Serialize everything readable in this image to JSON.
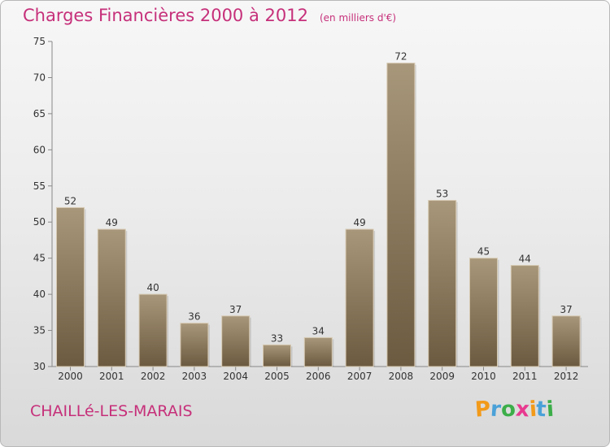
{
  "title": "Charges Financières 2000 à 2012",
  "unit_note": "(en milliers d'€)",
  "commune": "CHAILLé-LES-MARAIS",
  "logo": {
    "letters": [
      "P",
      "r",
      "o",
      "x",
      "i",
      "t",
      "i"
    ],
    "colors": [
      "#f29a1a",
      "#4aa1d8",
      "#3cae49",
      "#e8398f",
      "#f29a1a",
      "#4aa1d8",
      "#3cae49"
    ]
  },
  "colors": {
    "bar_top": "#a8977a",
    "bar_bottom": "#6c5a40",
    "accent": "#c6307a"
  },
  "chart_data": {
    "type": "bar",
    "categories": [
      "2000",
      "2001",
      "2002",
      "2003",
      "2004",
      "2005",
      "2006",
      "2007",
      "2008",
      "2009",
      "2010",
      "2011",
      "2012"
    ],
    "values": [
      52,
      49,
      40,
      36,
      37,
      33,
      34,
      49,
      72,
      53,
      45,
      44,
      37
    ],
    "ylim": [
      30,
      75
    ],
    "yticks": [
      30,
      35,
      40,
      45,
      50,
      55,
      60,
      65,
      70,
      75
    ],
    "grid": false,
    "legend": "none"
  }
}
